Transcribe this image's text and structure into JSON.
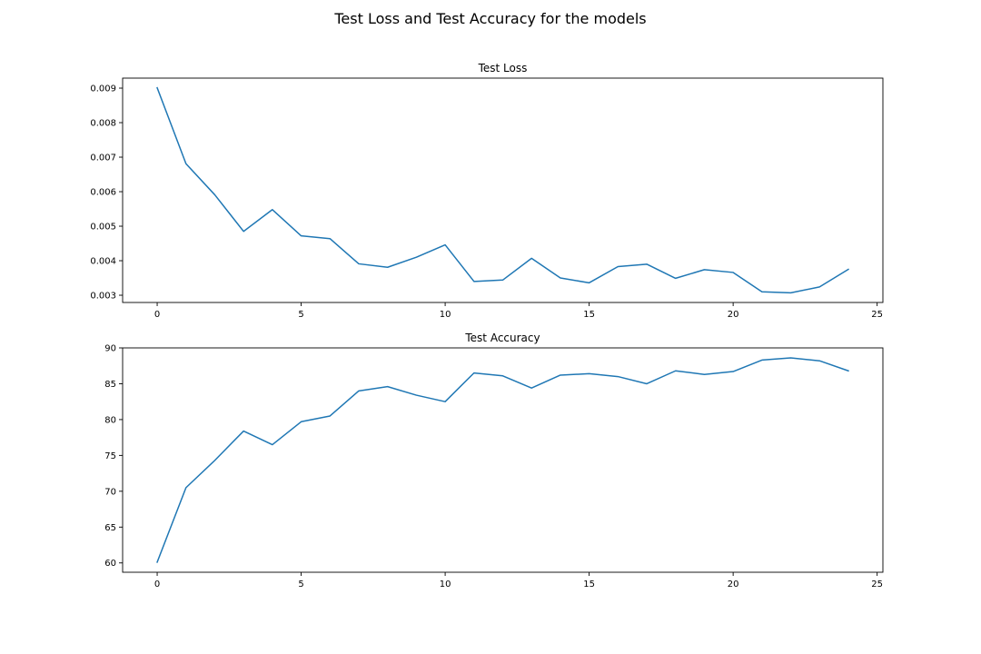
{
  "figure": {
    "title": "Test Loss and Test Accuracy for the models"
  },
  "colors": {
    "line": "#1f77b4"
  },
  "chart_data": [
    {
      "type": "line",
      "title": "Test Loss",
      "xlabel": "",
      "ylabel": "",
      "xlim": [
        -1.2,
        25.2
      ],
      "ylim": [
        0.00279,
        0.00929
      ],
      "xticks": [
        0,
        5,
        10,
        15,
        20,
        25
      ],
      "xtick_labels": [
        "0",
        "5",
        "10",
        "15",
        "20",
        "25"
      ],
      "yticks": [
        0.003,
        0.004,
        0.005,
        0.006,
        0.007,
        0.008,
        0.009
      ],
      "ytick_labels": [
        "0.003",
        "0.004",
        "0.005",
        "0.006",
        "0.007",
        "0.008",
        "0.009"
      ],
      "grid": false,
      "x": [
        0,
        1,
        2,
        3,
        4,
        5,
        6,
        7,
        8,
        9,
        10,
        11,
        12,
        13,
        14,
        15,
        16,
        17,
        18,
        19,
        20,
        21,
        22,
        23,
        24
      ],
      "values": [
        0.00901,
        0.00681,
        0.00591,
        0.00485,
        0.00548,
        0.00472,
        0.00464,
        0.00391,
        0.00381,
        0.0041,
        0.00446,
        0.0034,
        0.00344,
        0.00407,
        0.0035,
        0.00336,
        0.00383,
        0.0039,
        0.00349,
        0.00374,
        0.00366,
        0.0031,
        0.00307,
        0.00324,
        0.00375
      ]
    },
    {
      "type": "line",
      "title": "Test Accuracy",
      "xlabel": "",
      "ylabel": "",
      "xlim": [
        -1.2,
        25.2
      ],
      "ylim": [
        58.7,
        90.0
      ],
      "xticks": [
        0,
        5,
        10,
        15,
        20,
        25
      ],
      "xtick_labels": [
        "0",
        "5",
        "10",
        "15",
        "20",
        "25"
      ],
      "yticks": [
        60,
        65,
        70,
        75,
        80,
        85,
        90
      ],
      "ytick_labels": [
        "60",
        "65",
        "70",
        "75",
        "80",
        "85",
        "90"
      ],
      "grid": false,
      "x": [
        0,
        1,
        2,
        3,
        4,
        5,
        6,
        7,
        8,
        9,
        10,
        11,
        12,
        13,
        14,
        15,
        16,
        17,
        18,
        19,
        20,
        21,
        22,
        23,
        24
      ],
      "values": [
        60.1,
        70.5,
        74.3,
        78.4,
        76.5,
        79.7,
        80.5,
        84.0,
        84.6,
        83.4,
        82.5,
        86.5,
        86.1,
        84.4,
        86.2,
        86.4,
        86.0,
        85.0,
        86.8,
        86.3,
        86.7,
        88.3,
        88.6,
        88.2,
        86.8
      ]
    }
  ]
}
